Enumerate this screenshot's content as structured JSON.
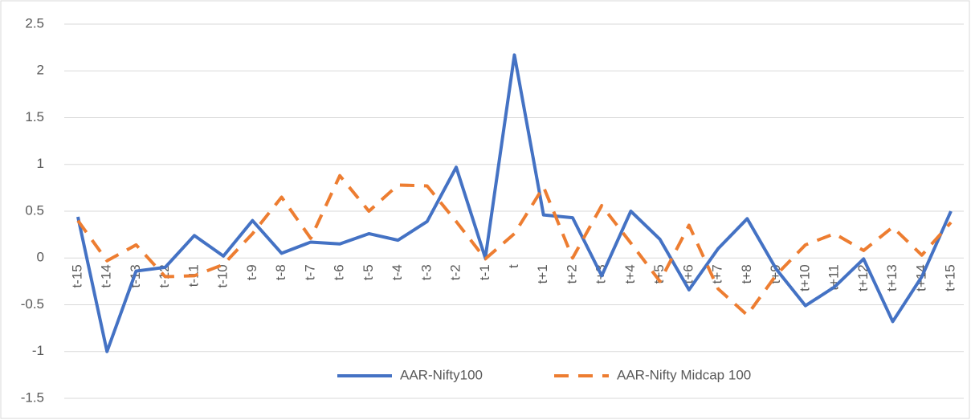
{
  "chart_data": {
    "type": "line",
    "categories": [
      "t-15",
      "t-14",
      "t-13",
      "t-12",
      "t-11",
      "t-10",
      "t-9",
      "t-8",
      "t-7",
      "t-6",
      "t-5",
      "t-4",
      "t-3",
      "t-2",
      "t-1",
      "t",
      "t+1",
      "t+2",
      "t+3",
      "t+4",
      "t+5",
      "t+6",
      "t+7",
      "t+8",
      "t+9",
      "t+10",
      "t+11",
      "t+12",
      "t+13",
      "t+14",
      "t+15"
    ],
    "series": [
      {
        "name": "AAR-Nifty100",
        "color": "#4472c4",
        "line_style": "solid",
        "values": [
          0.44,
          -1.0,
          -0.14,
          -0.1,
          0.24,
          0.02,
          0.4,
          0.05,
          0.17,
          0.15,
          0.26,
          0.19,
          0.39,
          0.97,
          0.0,
          2.17,
          0.46,
          0.43,
          -0.19,
          0.5,
          0.2,
          -0.34,
          0.1,
          0.42,
          -0.12,
          -0.51,
          -0.31,
          -0.01,
          -0.68,
          -0.2,
          0.5
        ]
      },
      {
        "name": "AAR-Nifty Midcap 100",
        "color": "#ed7d31",
        "line_style": "dashed",
        "values": [
          0.4,
          -0.03,
          0.14,
          -0.2,
          -0.19,
          -0.07,
          0.26,
          0.65,
          0.21,
          0.88,
          0.5,
          0.78,
          0.77,
          0.39,
          -0.01,
          0.26,
          0.76,
          0.0,
          0.56,
          0.16,
          -0.25,
          0.35,
          -0.33,
          -0.61,
          -0.18,
          0.14,
          0.26,
          0.08,
          0.33,
          0.03,
          0.38
        ]
      }
    ],
    "ylim": [
      -1.5,
      2.5
    ],
    "yticks": [
      -1.5,
      -1,
      -0.5,
      0,
      0.5,
      1,
      1.5,
      2,
      2.5
    ],
    "grid": true,
    "legend": "bottom"
  }
}
